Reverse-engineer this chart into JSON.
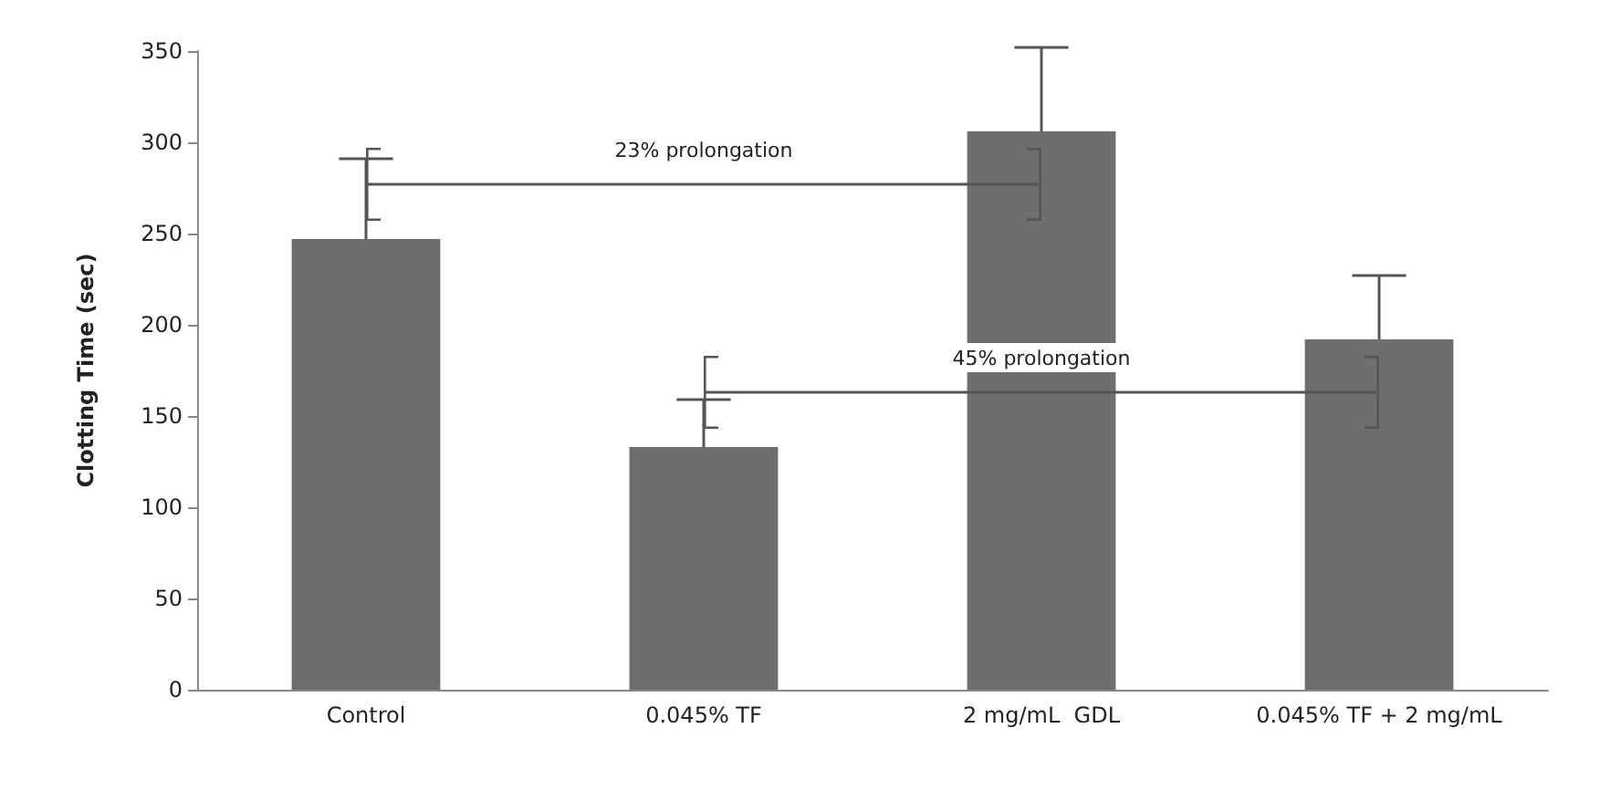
{
  "chart_data": {
    "type": "bar",
    "ylabel": "Clotting Time (sec)",
    "categories": [
      "Control",
      "0.045% TF",
      "2 mg/mL  GDL",
      "0.045% TF + 2 mg/mL"
    ],
    "values": [
      247,
      133,
      306,
      192
    ],
    "errors": [
      44,
      26,
      46,
      35
    ],
    "color": "#6e6e6e",
    "ylim": [
      0,
      350
    ],
    "yticks": [
      0,
      50,
      100,
      150,
      200,
      250,
      300,
      350
    ],
    "grid": false,
    "annotations": [
      "23% prolongation",
      "45% prolongation"
    ]
  }
}
